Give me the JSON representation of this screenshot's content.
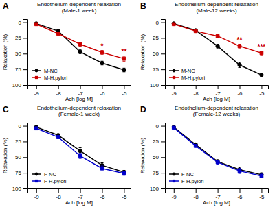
{
  "chart_data": [
    {
      "type": "line",
      "label": "A",
      "title": "Endothelium-dependent relaxation\n(Male-1 week)",
      "xlabel": "Ach [log M]",
      "ylabel": "Relaxation (%)",
      "x": [
        -9,
        -8,
        -7,
        -6,
        -5
      ],
      "xlim": [
        -9.4,
        -4.7
      ],
      "ylim": [
        100,
        -5
      ],
      "xticks": [
        -9,
        -8,
        -7,
        -6,
        -5
      ],
      "yticks": [
        0,
        25,
        50,
        75,
        100
      ],
      "legend": "lower left",
      "series": [
        {
          "name": "M-NC",
          "color": "#000000",
          "marker": "circle",
          "values": [
            2,
            14,
            47,
            65,
            76
          ],
          "errors": [
            1,
            2,
            3,
            3,
            3
          ]
        },
        {
          "name": "M-H.pylori",
          "color": "#cc0000",
          "marker": "square",
          "values": [
            3,
            18,
            35,
            48,
            58
          ],
          "errors": [
            1,
            2,
            3,
            3,
            4
          ]
        }
      ],
      "annotations": [
        {
          "x": -6,
          "y": 42,
          "text": "*",
          "color": "#cc0000"
        },
        {
          "x": -5,
          "y": 51,
          "text": "**",
          "color": "#cc0000"
        }
      ]
    },
    {
      "type": "line",
      "label": "B",
      "title": "Endothelium-dependent relaxation\n(Male-12 weeks)",
      "xlabel": "Ach [log M]",
      "ylabel": "Relaxation (%)",
      "x": [
        -9,
        -8,
        -7,
        -6,
        -5
      ],
      "xlim": [
        -9.4,
        -4.7
      ],
      "ylim": [
        100,
        -5
      ],
      "xticks": [
        -9,
        -8,
        -7,
        -6,
        -5
      ],
      "yticks": [
        0,
        25,
        50,
        75,
        100
      ],
      "legend": "lower left",
      "series": [
        {
          "name": "M-NC",
          "color": "#000000",
          "marker": "circle",
          "values": [
            2,
            13,
            38,
            68,
            84
          ],
          "errors": [
            1,
            2,
            3,
            4,
            3
          ]
        },
        {
          "name": "M-H.pylori",
          "color": "#cc0000",
          "marker": "square",
          "values": [
            3,
            14,
            22,
            38,
            49
          ],
          "errors": [
            1,
            2,
            2,
            3,
            3
          ]
        }
      ],
      "annotations": [
        {
          "x": -6,
          "y": 32,
          "text": "**",
          "color": "#cc0000"
        },
        {
          "x": -5,
          "y": 43,
          "text": "***",
          "color": "#cc0000"
        }
      ]
    },
    {
      "type": "line",
      "label": "C",
      "title": "Endothelium-dependent relaxation\n(Female-1 week)",
      "xlabel": "Ach [log M]",
      "ylabel": "Relaxation (%)",
      "x": [
        -9,
        -8,
        -7,
        -6,
        -5
      ],
      "xlim": [
        -9.4,
        -4.7
      ],
      "ylim": [
        100,
        -5
      ],
      "xticks": [
        -9,
        -8,
        -7,
        -6,
        -5
      ],
      "yticks": [
        0,
        25,
        50,
        75,
        100
      ],
      "legend": "lower left",
      "series": [
        {
          "name": "F-NC",
          "color": "#000000",
          "marker": "circle",
          "values": [
            2,
            15,
            40,
            63,
            74
          ],
          "errors": [
            1,
            2,
            5,
            4,
            3
          ]
        },
        {
          "name": "F-H.pylori",
          "color": "#0000cc",
          "marker": "square",
          "values": [
            4,
            18,
            48,
            68,
            76
          ],
          "errors": [
            1,
            2,
            4,
            4,
            3
          ]
        }
      ]
    },
    {
      "type": "line",
      "label": "D",
      "title": "Endothelium-dependent relaxation\n(Female-12 weeks)",
      "xlabel": "Ach [log M]",
      "ylabel": "Relaxation (%)",
      "x": [
        -9,
        -8,
        -7,
        -6,
        -5
      ],
      "xlim": [
        -9.4,
        -4.7
      ],
      "ylim": [
        100,
        -5
      ],
      "xticks": [
        -9,
        -8,
        -7,
        -6,
        -5
      ],
      "yticks": [
        0,
        25,
        50,
        75,
        100
      ],
      "legend": "lower left",
      "series": [
        {
          "name": "F-NC",
          "color": "#000000",
          "marker": "circle",
          "values": [
            2,
            30,
            57,
            70,
            78
          ],
          "errors": [
            1,
            2,
            3,
            4,
            3
          ]
        },
        {
          "name": "F-H.pylori",
          "color": "#0000cc",
          "marker": "square",
          "values": [
            3,
            32,
            58,
            72,
            80
          ],
          "errors": [
            1,
            2,
            3,
            4,
            3
          ]
        }
      ]
    }
  ]
}
